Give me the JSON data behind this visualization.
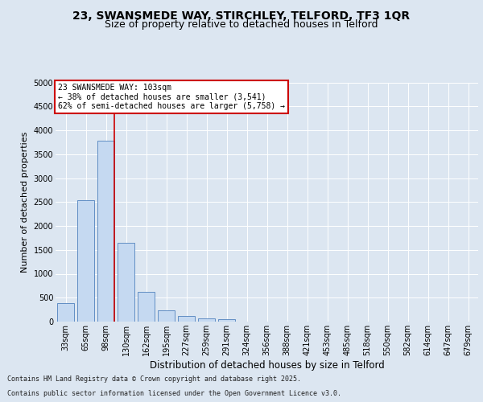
{
  "title_line1": "23, SWANSMEDE WAY, STIRCHLEY, TELFORD, TF3 1QR",
  "title_line2": "Size of property relative to detached houses in Telford",
  "categories": [
    "33sqm",
    "65sqm",
    "98sqm",
    "130sqm",
    "162sqm",
    "195sqm",
    "227sqm",
    "259sqm",
    "291sqm",
    "324sqm",
    "356sqm",
    "388sqm",
    "421sqm",
    "453sqm",
    "485sqm",
    "518sqm",
    "550sqm",
    "582sqm",
    "614sqm",
    "647sqm",
    "679sqm"
  ],
  "values": [
    390,
    2530,
    3780,
    1650,
    620,
    240,
    110,
    60,
    50,
    0,
    0,
    0,
    0,
    0,
    0,
    0,
    0,
    0,
    0,
    0,
    0
  ],
  "bar_color": "#c5d9f1",
  "bar_edge_color": "#4f81bd",
  "vline_color": "#cc0000",
  "annotation_text": "23 SWANSMEDE WAY: 103sqm\n← 38% of detached houses are smaller (3,541)\n62% of semi-detached houses are larger (5,758) →",
  "annotation_box_color": "white",
  "annotation_box_edge": "#cc0000",
  "xlabel": "Distribution of detached houses by size in Telford",
  "ylabel": "Number of detached properties",
  "ylim": [
    0,
    5000
  ],
  "yticks": [
    0,
    500,
    1000,
    1500,
    2000,
    2500,
    3000,
    3500,
    4000,
    4500,
    5000
  ],
  "background_color": "#dce6f1",
  "grid_color": "white",
  "footer_line1": "Contains HM Land Registry data © Crown copyright and database right 2025.",
  "footer_line2": "Contains public sector information licensed under the Open Government Licence v3.0.",
  "title_fontsize": 10,
  "subtitle_fontsize": 9,
  "tick_fontsize": 7,
  "ylabel_fontsize": 8,
  "xlabel_fontsize": 8.5,
  "footer_fontsize": 6,
  "annot_fontsize": 7
}
